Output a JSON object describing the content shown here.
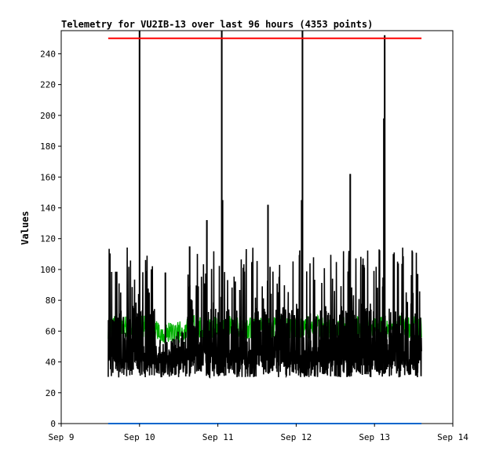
{
  "chart_data": {
    "type": "line",
    "title": "Telemetry for VU2IB-13 over last 96 hours (4353 points)",
    "xlabel": "",
    "ylabel": "Values",
    "xlim": [
      "Sep 9",
      "Sep 14"
    ],
    "ylim": [
      0,
      255
    ],
    "x_ticks": [
      "Sep 9",
      "Sep 10",
      "Sep 11",
      "Sep 12",
      "Sep 13",
      "Sep 14"
    ],
    "y_ticks": [
      0,
      20,
      40,
      60,
      80,
      100,
      120,
      140,
      160,
      180,
      200,
      220,
      240
    ],
    "grid": false,
    "legend": "none",
    "data_range_days": [
      9.6,
      13.6
    ],
    "series": [
      {
        "color": "#ff0000",
        "constant": 250
      },
      {
        "color": "#0066cc",
        "constant": 0
      },
      {
        "color": "#00b000",
        "typical_range": [
          55,
          70
        ]
      },
      {
        "color": "#000000",
        "typical_range": [
          28,
          75
        ],
        "spikes": [
          {
            "x": "Sep 10.00",
            "y": 255
          },
          {
            "x": "Sep 10.33",
            "y": 98
          },
          {
            "x": "Sep 10.64",
            "y": 115
          },
          {
            "x": "Sep 10.86",
            "y": 132
          },
          {
            "x": "Sep 11.05",
            "y": 255
          },
          {
            "x": "Sep 11.06",
            "y": 145
          },
          {
            "x": "Sep 11.64",
            "y": 142
          },
          {
            "x": "Sep 12.08",
            "y": 255
          },
          {
            "x": "Sep 12.07",
            "y": 145
          },
          {
            "x": "Sep 12.69",
            "y": 162
          },
          {
            "x": "Sep 13.13",
            "y": 252
          },
          {
            "x": "Sep 13.12",
            "y": 198
          },
          {
            "x": "Sep 13.55",
            "y": 97
          }
        ]
      }
    ]
  }
}
